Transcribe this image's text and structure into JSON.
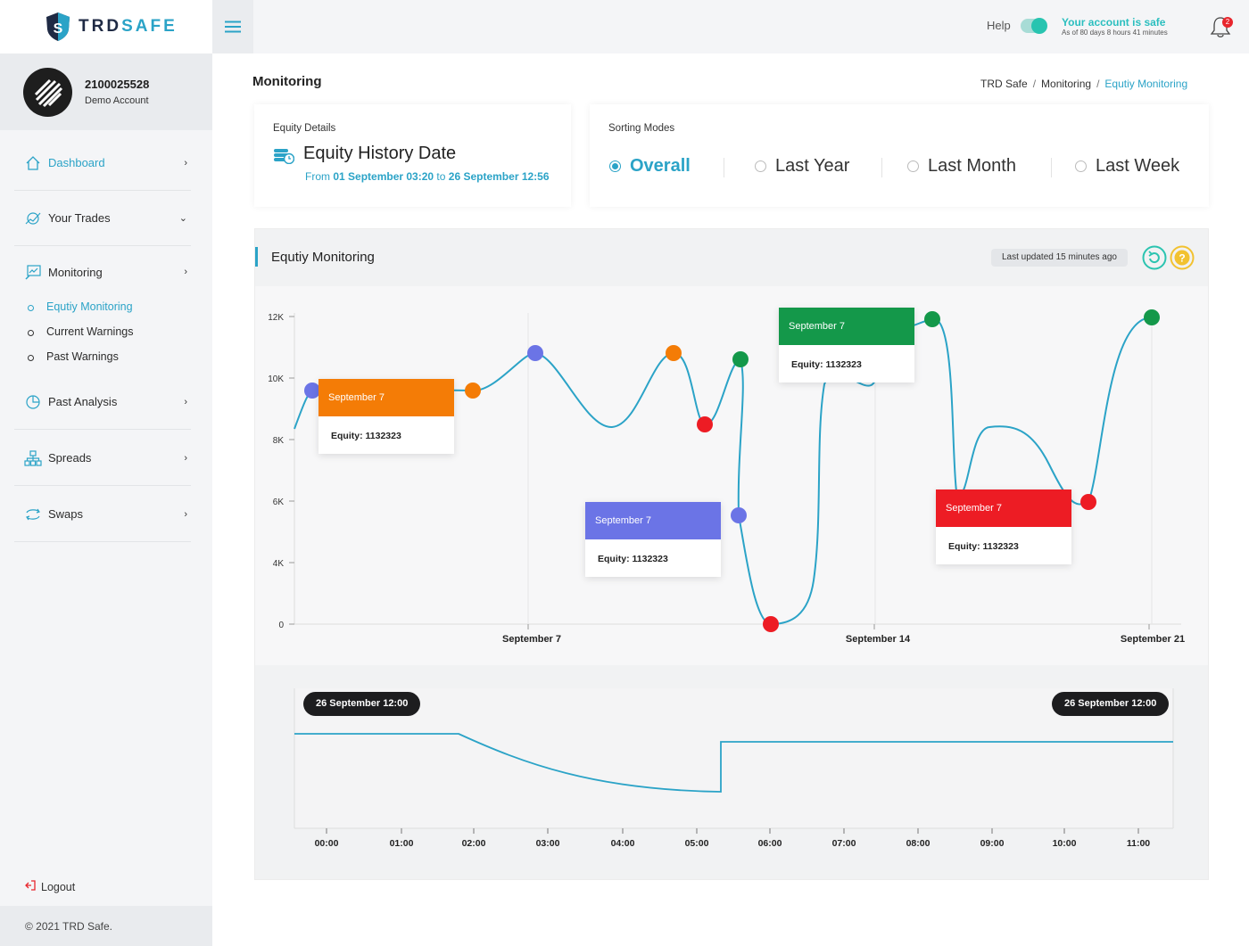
{
  "brand": {
    "name_part1": "TRD",
    "name_part2": "SAFE"
  },
  "account": {
    "number": "2100025528",
    "type": "Demo Account"
  },
  "sidebar": {
    "items": [
      {
        "label": "Dashboard",
        "icon": "home-icon"
      },
      {
        "label": "Your Trades",
        "icon": "trades-icon"
      },
      {
        "label": "Monitoring",
        "icon": "monitoring-icon"
      },
      {
        "label": "Past Analysis",
        "icon": "analysis-icon"
      },
      {
        "label": "Spreads",
        "icon": "spreads-icon"
      },
      {
        "label": "Swaps",
        "icon": "swaps-icon"
      }
    ],
    "sub_items": [
      "Equtiy Monitoring",
      "Current Warnings",
      "Past Warnings"
    ],
    "logout": "Logout",
    "copyright": "© 2021 TRD Safe."
  },
  "topbar": {
    "help": "Help",
    "safe_title": "Your account is safe",
    "safe_sub": "As of 80 days 8 hours 41 minutes",
    "notifications": "2"
  },
  "page": {
    "title": "Monitoring",
    "breadcrumb": [
      "TRD Safe",
      "Monitoring",
      "Equtiy Monitoring"
    ]
  },
  "equity_details": {
    "label": "Equity Details",
    "title": "Equity History Date",
    "from_word": "From",
    "from": "01 September 03:20",
    "to_word": "to",
    "to": "26 September 12:56"
  },
  "sorting": {
    "label": "Sorting Modes",
    "options": [
      "Overall",
      "Last Year",
      "Last Month",
      "Last Week"
    ],
    "selected": "Overall"
  },
  "monitor": {
    "title": "Equtiy Monitoring",
    "last_updated": "Last updated 15 minutes ago"
  },
  "colors": {
    "accent": "#2ba3c7",
    "orange": "#f47c06",
    "blue": "#6b74e6",
    "green": "#14984a",
    "red": "#ed1c24"
  },
  "chart_data": [
    {
      "type": "line",
      "y_ticks": [
        "12K",
        "10K",
        "8K",
        "6K",
        "4K",
        "0"
      ],
      "x_ticks": [
        "September 7",
        "September 14",
        "September 21"
      ],
      "tooltips": [
        {
          "title": "September 7",
          "body": "Equity: 1132323",
          "color": "orange"
        },
        {
          "title": "September 7",
          "body": "Equity: 1132323",
          "color": "blue"
        },
        {
          "title": "September 7",
          "body": "Equity: 1132323",
          "color": "green"
        },
        {
          "title": "September 7",
          "body": "Equity: 1132323",
          "color": "red"
        }
      ]
    },
    {
      "type": "line",
      "x_ticks": [
        "00:00",
        "01:00",
        "02:00",
        "03:00",
        "04:00",
        "05:00",
        "06:00",
        "07:00",
        "08:00",
        "09:00",
        "10:00",
        "11:00"
      ],
      "range_start": "26 September 12:00",
      "range_end": "26 September 12:00"
    }
  ]
}
